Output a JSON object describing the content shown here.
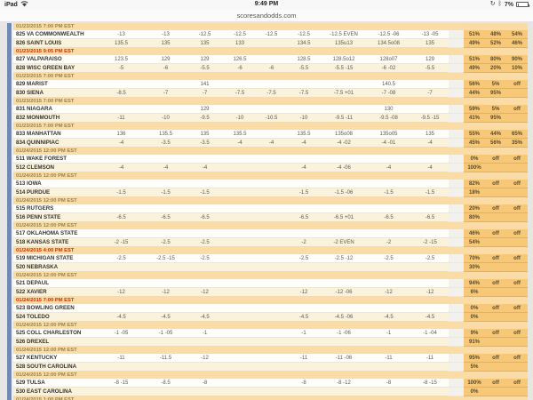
{
  "status_bar": {
    "device": "iPad",
    "time": "9:49 PM",
    "battery": "7%",
    "icons": [
      "wifi-icon",
      "rotation-lock-icon",
      "bluetooth-icon",
      "battery-icon"
    ]
  },
  "site": {
    "domain": "scoresandodds.com"
  },
  "colors": {
    "header_orange": "#fbdca6",
    "pct_orange": "#f7c878",
    "alert_red": "#cc2d00",
    "strip_blue": "#7289b7",
    "row_white": "#fffef8",
    "row_cream": "#faf2da"
  },
  "table": {
    "rows": [
      {
        "type": "header",
        "text": "01/23/2015 7:00 PM EST",
        "alert": false
      },
      {
        "type": "team",
        "team": "825 VA COMMONWEALTH",
        "cols": [
          "-13",
          "-13",
          "-12.5",
          "-12.5",
          "-12.5",
          "-12.5",
          "-12.5 EVEN",
          "-12.5 -06",
          "-13 -05"
        ],
        "pct": [
          "51%",
          "48%",
          "54%"
        ]
      },
      {
        "type": "team",
        "team": "826 SAINT LOUIS",
        "cols": [
          "135.5",
          "135",
          "135",
          "133",
          "",
          "134.5",
          "135u13",
          "134.5o08",
          "135"
        ],
        "pct": [
          "49%",
          "52%",
          "46%"
        ]
      },
      {
        "type": "header",
        "text": "01/23/2015 9:05 PM EST",
        "alert": true
      },
      {
        "type": "team",
        "team": "827 VALPARAISO",
        "cols": [
          "123.5",
          "129",
          "129",
          "126.5",
          "",
          "128.5",
          "128.5o12",
          "128o07",
          "129"
        ],
        "pct": [
          "51%",
          "80%",
          "90%"
        ]
      },
      {
        "type": "team",
        "team": "828 WISC GREEN BAY",
        "cols": [
          "-5",
          "-6",
          "-5.5",
          "-6",
          "-6",
          "-5.5",
          "-5.5 -15",
          "-6 -02",
          "-5.5"
        ],
        "pct": [
          "49%",
          "20%",
          "10%"
        ]
      },
      {
        "type": "header",
        "text": "01/23/2015 7:00 PM EST",
        "alert": false
      },
      {
        "type": "team",
        "team": "829 MARIST",
        "cols": [
          "",
          "",
          "141",
          "",
          "",
          "",
          "",
          "140.5",
          ""
        ],
        "pct": [
          "56%",
          "5%",
          "off"
        ]
      },
      {
        "type": "team",
        "team": "830 SIENA",
        "cols": [
          "-8.5",
          "-7",
          "-7",
          "-7.5",
          "-7.5",
          "-7.5",
          "-7.5 +01",
          "-7 -08",
          "-7"
        ],
        "pct": [
          "44%",
          "95%",
          ""
        ]
      },
      {
        "type": "header",
        "text": "01/23/2015 7:00 PM EST",
        "alert": false
      },
      {
        "type": "team",
        "team": "831 NIAGARA",
        "cols": [
          "",
          "",
          "129",
          "",
          "",
          "",
          "",
          "130",
          ""
        ],
        "pct": [
          "59%",
          "5%",
          "off"
        ]
      },
      {
        "type": "team",
        "team": "832 MONMOUTH",
        "cols": [
          "-11",
          "-10",
          "-9.5",
          "-10",
          "-10.5",
          "-10",
          "-9.5 -11",
          "-9.5 -08",
          "-9.5 -15"
        ],
        "pct": [
          "41%",
          "95%",
          ""
        ]
      },
      {
        "type": "header",
        "text": "01/23/2015 7:00 PM EST",
        "alert": false
      },
      {
        "type": "team",
        "team": "833 MANHATTAN",
        "cols": [
          "136",
          "135.5",
          "135",
          "135.5",
          "",
          "135.5",
          "135o08",
          "135o05",
          "135"
        ],
        "pct": [
          "55%",
          "44%",
          "65%"
        ]
      },
      {
        "type": "team",
        "team": "834 QUINNIPIAC",
        "cols": [
          "-4",
          "-3.5",
          "-3.5",
          "-4",
          "-4",
          "-4",
          "-4 -02",
          "-4 -01",
          "-4"
        ],
        "pct": [
          "45%",
          "56%",
          "35%"
        ]
      },
      {
        "type": "header",
        "text": "01/24/2015 12:00 PM EST",
        "alert": false
      },
      {
        "type": "team",
        "team": "511 WAKE FOREST",
        "cols": [
          "",
          "",
          "",
          "",
          "",
          "",
          "",
          "",
          ""
        ],
        "pct": [
          "0%",
          "off",
          "off"
        ]
      },
      {
        "type": "team",
        "team": "512 CLEMSON",
        "cols": [
          "-4",
          "-4",
          "-4",
          "",
          "",
          "-4",
          "-4 -06",
          "-4",
          "-4"
        ],
        "pct": [
          "100%",
          "",
          ""
        ]
      },
      {
        "type": "header",
        "text": "01/24/2015 12:00 PM EST",
        "alert": false
      },
      {
        "type": "team",
        "team": "513 IOWA",
        "cols": [
          "",
          "",
          "",
          "",
          "",
          "",
          "",
          "",
          ""
        ],
        "pct": [
          "82%",
          "off",
          "off"
        ]
      },
      {
        "type": "team",
        "team": "514 PURDUE",
        "cols": [
          "-1.5",
          "-1.5",
          "-1.5",
          "",
          "",
          "-1.5",
          "-1.5 -06",
          "-1.5",
          "-1.5"
        ],
        "pct": [
          "18%",
          "",
          ""
        ]
      },
      {
        "type": "header",
        "text": "01/24/2015 12:00 PM EST",
        "alert": false
      },
      {
        "type": "team",
        "team": "515 RUTGERS",
        "cols": [
          "",
          "",
          "",
          "",
          "",
          "",
          "",
          "",
          ""
        ],
        "pct": [
          "20%",
          "off",
          "off"
        ]
      },
      {
        "type": "team",
        "team": "516 PENN STATE",
        "cols": [
          "-6.5",
          "-6.5",
          "-6.5",
          "",
          "",
          "-6.5",
          "-6.5 +01",
          "-6.5",
          "-6.5"
        ],
        "pct": [
          "80%",
          "",
          ""
        ]
      },
      {
        "type": "header",
        "text": "01/24/2015 12:00 PM EST",
        "alert": false
      },
      {
        "type": "team",
        "team": "517 OKLAHOMA STATE",
        "cols": [
          "",
          "",
          "",
          "",
          "",
          "",
          "",
          "",
          ""
        ],
        "pct": [
          "46%",
          "off",
          "off"
        ]
      },
      {
        "type": "team",
        "team": "518 KANSAS STATE",
        "cols": [
          "-2 -15",
          "-2.5",
          "-2.5",
          "",
          "",
          "-2",
          "-2 EVEN",
          "-2",
          "-2 -15"
        ],
        "pct": [
          "54%",
          "",
          ""
        ]
      },
      {
        "type": "header",
        "text": "01/24/2015 4:00 PM EST",
        "alert": true
      },
      {
        "type": "team",
        "team": "519 MICHIGAN STATE",
        "cols": [
          "-2.5",
          "-2.5 -15",
          "-2.5",
          "",
          "",
          "-2.5",
          "-2.5 -12",
          "-2.5",
          "-2.5"
        ],
        "pct": [
          "70%",
          "off",
          "off"
        ]
      },
      {
        "type": "team",
        "team": "520 NEBRASKA",
        "cols": [
          "",
          "",
          "",
          "",
          "",
          "",
          "",
          "",
          ""
        ],
        "pct": [
          "30%",
          "",
          ""
        ]
      },
      {
        "type": "header",
        "text": "01/24/2015 12:00 PM EST",
        "alert": false
      },
      {
        "type": "team",
        "team": "521 DEPAUL",
        "cols": [
          "",
          "",
          "",
          "",
          "",
          "",
          "",
          "",
          ""
        ],
        "pct": [
          "94%",
          "off",
          "off"
        ]
      },
      {
        "type": "team",
        "team": "522 XAVIER",
        "cols": [
          "-12",
          "-12",
          "-12",
          "",
          "",
          "-12",
          "-12 -06",
          "-12",
          "-12"
        ],
        "pct": [
          "6%",
          "",
          ""
        ]
      },
      {
        "type": "header",
        "text": "01/24/2015 7:00 PM EST",
        "alert": true
      },
      {
        "type": "team",
        "team": "523 BOWLING GREEN",
        "cols": [
          "",
          "",
          "",
          "",
          "",
          "",
          "",
          "",
          ""
        ],
        "pct": [
          "0%",
          "off",
          "off"
        ]
      },
      {
        "type": "team",
        "team": "524 TOLEDO",
        "cols": [
          "-4.5",
          "-4.5",
          "-4.5",
          "",
          "",
          "-4.5",
          "-4.5 -06",
          "-4.5",
          "-4.5"
        ],
        "pct": [
          "0%",
          "",
          ""
        ]
      },
      {
        "type": "header",
        "text": "01/24/2015 12:00 PM EST",
        "alert": false
      },
      {
        "type": "team",
        "team": "525 COLL CHARLESTON",
        "cols": [
          "-1 -05",
          "-1 -05",
          "-1",
          "",
          "",
          "-1",
          "-1 -06",
          "-1",
          "-1 -04"
        ],
        "pct": [
          "9%",
          "off",
          "off"
        ]
      },
      {
        "type": "team",
        "team": "526 DREXEL",
        "cols": [
          "",
          "",
          "",
          "",
          "",
          "",
          "",
          "",
          ""
        ],
        "pct": [
          "91%",
          "",
          ""
        ]
      },
      {
        "type": "header",
        "text": "01/24/2015 12:00 PM EST",
        "alert": false
      },
      {
        "type": "team",
        "team": "527 KENTUCKY",
        "cols": [
          "-11",
          "-11.5",
          "-12",
          "",
          "",
          "-11",
          "-11 -06",
          "-11",
          "-11"
        ],
        "pct": [
          "95%",
          "off",
          "off"
        ]
      },
      {
        "type": "team",
        "team": "528 SOUTH CAROLINA",
        "cols": [
          "",
          "",
          "",
          "",
          "",
          "",
          "",
          "",
          ""
        ],
        "pct": [
          "5%",
          "",
          ""
        ]
      },
      {
        "type": "header",
        "text": "01/24/2015 12:00 PM EST",
        "alert": false
      },
      {
        "type": "team",
        "team": "529 TULSA",
        "cols": [
          "-8 -15",
          "-8.5",
          "-8",
          "",
          "",
          "-8",
          "-8 -12",
          "-8",
          "-8 -15"
        ],
        "pct": [
          "100%",
          "off",
          "off"
        ]
      },
      {
        "type": "team",
        "team": "530 EAST CAROLINA",
        "cols": [
          "",
          "",
          "",
          "",
          "",
          "",
          "",
          "",
          ""
        ],
        "pct": [
          "0%",
          "",
          ""
        ]
      },
      {
        "type": "header",
        "text": "01/24/2015 1:00 PM EST",
        "alert": false
      }
    ]
  }
}
